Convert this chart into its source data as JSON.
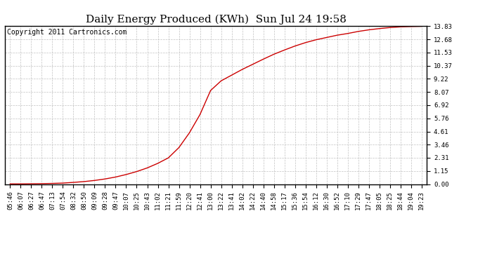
{
  "title": "Daily Energy Produced (KWh)  Sun Jul 24 19:58",
  "copyright_text": "Copyright 2011 Cartronics.com",
  "line_color": "#cc0000",
  "bg_color": "#ffffff",
  "plot_bg_color": "#ffffff",
  "grid_color": "#bbbbbb",
  "yticks": [
    0.0,
    1.15,
    2.31,
    3.46,
    4.61,
    5.76,
    6.92,
    8.07,
    9.22,
    10.37,
    11.53,
    12.68,
    13.83
  ],
  "ymax": 13.83,
  "ymin": 0.0,
  "x_labels": [
    "05:46",
    "06:07",
    "06:27",
    "06:47",
    "07:13",
    "07:54",
    "08:32",
    "08:50",
    "09:09",
    "09:28",
    "09:47",
    "10:07",
    "10:25",
    "10:43",
    "11:02",
    "11:21",
    "11:59",
    "12:20",
    "12:41",
    "13:00",
    "13:22",
    "13:41",
    "14:02",
    "14:22",
    "14:40",
    "14:58",
    "15:17",
    "15:36",
    "15:54",
    "16:12",
    "16:30",
    "16:52",
    "17:10",
    "17:29",
    "17:47",
    "18:05",
    "18:25",
    "18:44",
    "19:04",
    "19:23"
  ],
  "y_values": [
    0.02,
    0.02,
    0.03,
    0.04,
    0.06,
    0.09,
    0.15,
    0.22,
    0.32,
    0.45,
    0.62,
    0.84,
    1.1,
    1.42,
    1.82,
    2.3,
    3.2,
    4.5,
    6.1,
    8.2,
    9.05,
    9.55,
    10.05,
    10.5,
    10.95,
    11.38,
    11.75,
    12.1,
    12.4,
    12.65,
    12.85,
    13.05,
    13.2,
    13.38,
    13.52,
    13.63,
    13.72,
    13.78,
    13.81,
    13.83
  ],
  "title_fontsize": 11,
  "tick_fontsize": 6.5,
  "copyright_fontsize": 7,
  "line_width": 1.0
}
